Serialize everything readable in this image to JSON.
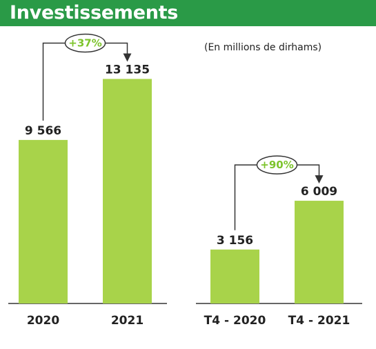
{
  "header": {
    "title": "Investissements"
  },
  "unit_note": "(En millions de dirhams)",
  "colors": {
    "header": "#2a9a47",
    "bar": "#a8d34a",
    "growth_text": "#7dc42c",
    "axis": "#333333"
  },
  "chart_data": [
    {
      "type": "bar",
      "categories": [
        "2020",
        "2021"
      ],
      "values": [
        9566,
        13135
      ],
      "value_labels": [
        "9 566",
        "13 135"
      ],
      "growth_label": "+37%",
      "ylim": [
        0,
        14000
      ]
    },
    {
      "type": "bar",
      "categories": [
        "T4 - 2020",
        "T4 - 2021"
      ],
      "values": [
        3156,
        6009
      ],
      "value_labels": [
        "3 156",
        "6 009"
      ],
      "growth_label": "+90%",
      "ylim": [
        0,
        14000
      ]
    }
  ]
}
